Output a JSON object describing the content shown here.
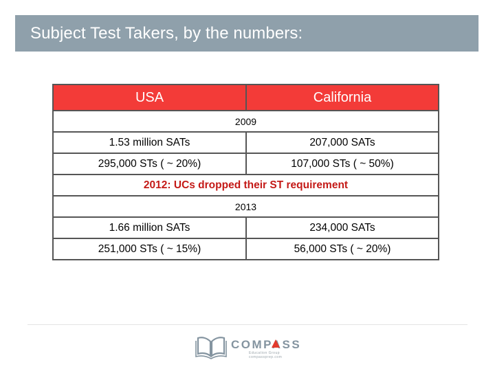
{
  "title": "Subject Test Takers, by the numbers:",
  "table": {
    "headers": {
      "left": "USA",
      "right": "California"
    },
    "sections": [
      {
        "year": "2009",
        "rows": [
          {
            "left": "1.53 million SATs",
            "right": "207,000 SATs"
          },
          {
            "left": "295,000 STs ( ~ 20%)",
            "right": "107,000 STs ( ~ 50%)"
          }
        ]
      },
      {
        "year": "2013",
        "rows": [
          {
            "left": "1.66 million SATs",
            "right": "234,000 SATs"
          },
          {
            "left": "251,000 STs ( ~ 15%)",
            "right": "56,000 STs ( ~ 20%)"
          }
        ]
      }
    ],
    "note": {
      "year_label": "2012:",
      "text": " UCs dropped their ST requirement"
    }
  },
  "logo": {
    "brand": "COMPASS",
    "subtitle_1": "Education Group",
    "subtitle_2": "compassprep.com"
  },
  "colors": {
    "title_bar": "#8fa0ab",
    "header_red": "#f33b38",
    "note_red": "#c41a17",
    "logo_grey": "#8494a0",
    "logo_accent": "#e23b2e"
  }
}
